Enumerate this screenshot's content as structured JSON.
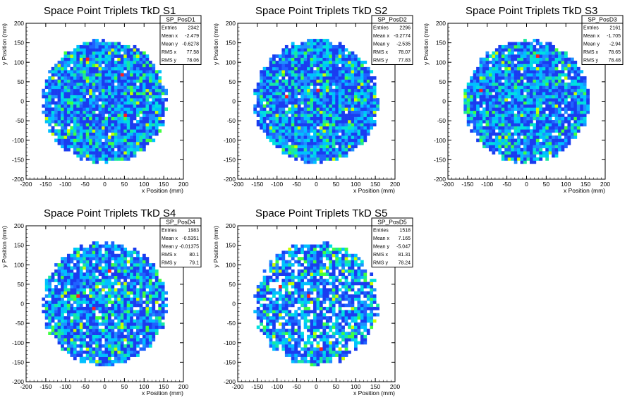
{
  "chart_data": [
    {
      "type": "heatmap",
      "title": "Space Point Triplets TkD S1",
      "xlabel": "x Position (mm)",
      "ylabel": "y Position (mm)",
      "xlim": [
        -200,
        200
      ],
      "ylim": [
        -200,
        200
      ],
      "ticks": [
        "-200",
        "-150",
        "-100",
        "-50",
        "0",
        "50",
        "100",
        "150",
        "200"
      ],
      "stats": {
        "name": "SP_PosD1",
        "rows": [
          {
            "label": "Entries",
            "value": "2342"
          },
          {
            "label": "Mean x",
            "value": "-2.479"
          },
          {
            "label": "Mean y",
            "value": "-0.6278"
          },
          {
            "label": "RMS x",
            "value": "77.58"
          },
          {
            "label": "RMS y",
            "value": "78.06"
          }
        ]
      },
      "distribution": {
        "radius": 160,
        "bin": 8,
        "seed": 11,
        "density": 0.98
      },
      "hot_bins": [
        [
          40,
          70
        ],
        [
          55,
          -35
        ],
        [
          -45,
          110
        ]
      ]
    },
    {
      "type": "heatmap",
      "title": "Space Point Triplets TkD S2",
      "xlabel": "x Position (mm)",
      "ylabel": "y Position (mm)",
      "xlim": [
        -200,
        200
      ],
      "ylim": [
        -200,
        200
      ],
      "ticks": [
        "-200",
        "-150",
        "-100",
        "-50",
        "0",
        "50",
        "100",
        "150",
        "200"
      ],
      "stats": {
        "name": "SP_PosD2",
        "rows": [
          {
            "label": "Entries",
            "value": "2296"
          },
          {
            "label": "Mean x",
            "value": "-0.2774"
          },
          {
            "label": "Mean y",
            "value": "-2.535"
          },
          {
            "label": "RMS x",
            "value": "78.07"
          },
          {
            "label": "RMS y",
            "value": "77.83"
          }
        ]
      },
      "distribution": {
        "radius": 160,
        "bin": 8,
        "seed": 23,
        "density": 0.98
      },
      "hot_bins": [
        [
          5,
          25
        ],
        [
          -75,
          15
        ]
      ]
    },
    {
      "type": "heatmap",
      "title": "Space Point Triplets TkD S3",
      "xlabel": "x Position (mm)",
      "ylabel": "y Position (mm)",
      "xlim": [
        -200,
        200
      ],
      "ylim": [
        -200,
        200
      ],
      "ticks": [
        "-200",
        "-150",
        "-100",
        "-50",
        "0",
        "50",
        "100",
        "150",
        "200"
      ],
      "stats": {
        "name": "SP_PosD3",
        "rows": [
          {
            "label": "Entries",
            "value": "2161"
          },
          {
            "label": "Mean x",
            "value": "-1.705"
          },
          {
            "label": "Mean y",
            "value": "-2.94"
          },
          {
            "label": "RMS x",
            "value": "78.65"
          },
          {
            "label": "RMS y",
            "value": "78.48"
          }
        ]
      },
      "distribution": {
        "radius": 160,
        "bin": 8,
        "seed": 37,
        "density": 0.95
      },
      "hot_bins": [
        [
          30,
          115
        ],
        [
          -120,
          25
        ]
      ]
    },
    {
      "type": "heatmap",
      "title": "Space Point Triplets TkD S4",
      "xlabel": "x Position (mm)",
      "ylabel": "y Position (mm)",
      "xlim": [
        -200,
        200
      ],
      "ylim": [
        -200,
        200
      ],
      "ticks": [
        "-200",
        "-150",
        "-100",
        "-50",
        "0",
        "50",
        "100",
        "150",
        "200"
      ],
      "stats": {
        "name": "SP_PosD4",
        "rows": [
          {
            "label": "Entries",
            "value": "1983"
          },
          {
            "label": "Mean x",
            "value": "-0.5351"
          },
          {
            "label": "Mean y",
            "value": "-0.01375"
          },
          {
            "label": "RMS x",
            "value": "80.1"
          },
          {
            "label": "RMS y",
            "value": "79.1"
          }
        ]
      },
      "distribution": {
        "radius": 160,
        "bin": 8,
        "seed": 53,
        "density": 0.9
      },
      "hot_bins": [
        [
          15,
          85
        ],
        [
          -30,
          -10
        ],
        [
          -70,
          20
        ]
      ]
    },
    {
      "type": "heatmap",
      "title": "Space Point Triplets TkD S5",
      "xlabel": "x Position (mm)",
      "ylabel": "y Position (mm)",
      "xlim": [
        -200,
        200
      ],
      "ylim": [
        -200,
        200
      ],
      "ticks": [
        "-200",
        "-150",
        "-100",
        "-50",
        "0",
        "50",
        "100",
        "150",
        "200"
      ],
      "stats": {
        "name": "SP_PosD5",
        "rows": [
          {
            "label": "Entries",
            "value": "1518"
          },
          {
            "label": "Mean x",
            "value": "7.165"
          },
          {
            "label": "Mean y",
            "value": "-5.047"
          },
          {
            "label": "RMS x",
            "value": "81.31"
          },
          {
            "label": "RMS y",
            "value": "78.24"
          }
        ]
      },
      "distribution": {
        "radius": 160,
        "bin": 8,
        "seed": 71,
        "density": 0.8
      },
      "hot_bins": [
        [
          -90,
          40
        ],
        [
          -20,
          20
        ],
        [
          10,
          -120
        ]
      ]
    }
  ],
  "colors": {
    "frame": "#000000",
    "background": "#ffffff",
    "palette": [
      "#1a3cf0",
      "#1e63ff",
      "#1e90ff",
      "#00c0ff",
      "#00e0e0",
      "#18e8a0",
      "#40ff40",
      "#c8ff00",
      "#ff2020"
    ]
  }
}
